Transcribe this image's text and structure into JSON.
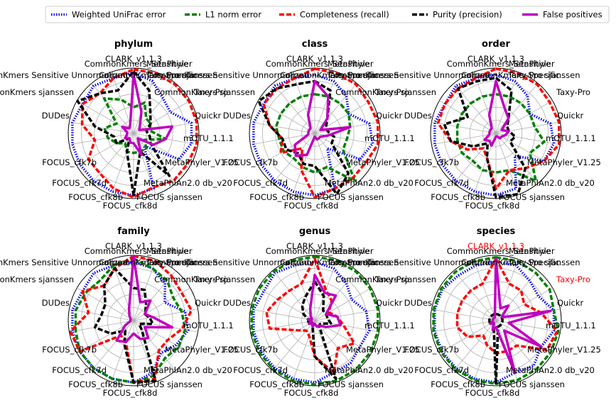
{
  "chart_data": {
    "type": "radar",
    "metric_colors": {
      "Weighted UniFrac error": "#0000ee",
      "L1 norm error": "#008000",
      "Completeness (recall)": "#ff0000",
      "Purity (precision)": "#000000",
      "False positives": "#bf00bf"
    },
    "legend": {
      "position": "top",
      "entries": [
        "Weighted UniFrac error",
        "L1 norm error",
        "Completeness (recall)",
        "Purity (precision)",
        "False positives"
      ]
    },
    "grid": true,
    "rlim": [
      0,
      1
    ],
    "tools": [
      "CLARK_v1.1.3",
      "CommonKmers_Sensitive",
      "CommonKmers_Specific",
      "MetaPhyler",
      "Taxy-Pro sjanssen",
      "Taxy-Pro",
      "Quickr",
      "mOTU_1.1.1",
      "MetaPhyler_V1.25",
      "MetaPhlAn2.0 db_v20",
      "FOCUS sjanssen",
      "FOCUS_cfk8d",
      "FOCUS_cfk8b",
      "FOCUS_cfk7d",
      "FOCUS_cfk7b",
      "DUDes",
      "CommonKmers sjanssen",
      "CommonKmers Sensitive Unnormalized"
    ],
    "tool_label_color": "#000000",
    "highlight_color": "#ff0000",
    "panels": [
      {
        "title": "phylum",
        "highlighted_tools": [],
        "series": [
          {
            "name": "Weighted UniFrac error",
            "values": [
              0.93,
              0.85,
              0.7,
              0.65,
              0.9,
              0.9,
              0.8,
              0.25,
              0.9,
              0.95,
              0.95,
              0.95,
              0.95,
              0.95,
              0.95,
              0.9,
              0.95,
              0.9
            ]
          },
          {
            "name": "L1 norm error",
            "values": [
              0.4,
              0.5,
              0.3,
              0.3,
              0.25,
              0.5,
              0.2,
              0.3,
              0.3,
              0.3,
              0.3,
              0.2,
              0.3,
              0.4,
              0.45,
              0.3,
              0.7,
              0.55
            ]
          },
          {
            "name": "Completeness (recall)",
            "values": [
              0.98,
              0.98,
              0.98,
              0.98,
              0.98,
              0.98,
              0.95,
              0.95,
              0.88,
              0.98,
              0.9,
              0.8,
              0.8,
              0.6,
              0.8,
              0.9,
              0.8,
              0.9
            ]
          },
          {
            "name": "Purity (precision)",
            "values": [
              0.95,
              0.7,
              0.4,
              0.3,
              0.2,
              0.25,
              0.3,
              0.85,
              0.3,
              0.95,
              0.3,
              0.1,
              0.3,
              0.3,
              0.6,
              0.99,
              0.8,
              0.7
            ]
          },
          {
            "name": "False positives",
            "values": [
              0.9,
              0.35,
              0.15,
              0.1,
              0.6,
              0.5,
              0.35,
              0.1,
              0.35,
              0.15,
              0.15,
              0.1,
              0.15,
              0.1,
              0.1,
              0.2,
              0.1,
              0.15
            ]
          }
        ]
      },
      {
        "title": "class",
        "highlighted_tools": [],
        "series": [
          {
            "name": "Weighted UniFrac error",
            "values": [
              0.9,
              0.85,
              0.75,
              0.6,
              0.85,
              0.9,
              0.8,
              0.3,
              0.9,
              0.95,
              0.95,
              0.95,
              0.95,
              0.95,
              0.95,
              0.9,
              0.95,
              0.9
            ]
          },
          {
            "name": "L1 norm error",
            "values": [
              0.6,
              0.6,
              0.6,
              0.6,
              0.55,
              0.5,
              0.5,
              0.95,
              0.55,
              0.6,
              0.55,
              0.5,
              0.55,
              0.55,
              0.6,
              0.6,
              0.6,
              0.6
            ]
          },
          {
            "name": "Completeness (recall)",
            "values": [
              0.99,
              0.98,
              0.98,
              0.95,
              0.98,
              0.98,
              0.9,
              0.9,
              0.9,
              0.98,
              0.6,
              0.3,
              0.6,
              0.5,
              0.7,
              0.9,
              0.9,
              0.9
            ]
          },
          {
            "name": "Purity (precision)",
            "values": [
              0.8,
              0.7,
              0.3,
              0.2,
              0.2,
              0.3,
              0.3,
              0.8,
              0.99,
              0.5,
              0.5,
              0.4,
              0.5,
              0.5,
              0.7,
              0.99,
              0.9,
              0.8
            ]
          },
          {
            "name": "False positives",
            "values": [
              0.8,
              0.6,
              0.3,
              0.1,
              0.55,
              0.2,
              0.1,
              0.1,
              0.1,
              0.05,
              0.35,
              0.45,
              0.35,
              0.1,
              0.1,
              0.1,
              0.1,
              0.3
            ]
          }
        ]
      },
      {
        "title": "order",
        "highlighted_tools": [],
        "series": [
          {
            "name": "Weighted UniFrac error",
            "values": [
              0.9,
              0.85,
              0.75,
              0.6,
              0.85,
              0.9,
              0.85,
              0.45,
              0.9,
              0.95,
              0.95,
              0.95,
              0.95,
              0.95,
              0.95,
              0.9,
              0.95,
              0.9
            ]
          },
          {
            "name": "L1 norm error",
            "values": [
              0.6,
              0.6,
              0.6,
              0.6,
              0.6,
              0.75,
              0.6,
              0.95,
              0.6,
              0.6,
              0.6,
              0.55,
              0.6,
              0.6,
              0.6,
              0.6,
              0.6,
              0.6
            ]
          },
          {
            "name": "Completeness (recall)",
            "values": [
              0.99,
              0.98,
              0.98,
              0.95,
              0.98,
              0.98,
              0.85,
              0.7,
              0.6,
              0.85,
              0.4,
              0.3,
              0.5,
              0.7,
              0.9,
              0.9,
              0.9,
              0.9
            ]
          },
          {
            "name": "Purity (precision)",
            "values": [
              0.85,
              0.7,
              0.3,
              0.2,
              0.2,
              0.3,
              0.25,
              0.7,
              0.99,
              0.98,
              0.4,
              0.2,
              0.4,
              0.7,
              0.8,
              0.5,
              0.9,
              0.85
            ]
          },
          {
            "name": "False positives",
            "values": [
              0.8,
              0.4,
              0.3,
              0.1,
              0.2,
              0.15,
              0.1,
              0.1,
              0.05,
              0.05,
              0.2,
              0.15,
              0.2,
              0.1,
              0.1,
              0.1,
              0.1,
              0.3
            ]
          }
        ]
      },
      {
        "title": "family",
        "highlighted_tools": [],
        "series": [
          {
            "name": "Weighted UniFrac error",
            "values": [
              0.9,
              0.85,
              0.75,
              0.55,
              0.8,
              0.85,
              0.75,
              0.65,
              0.85,
              0.95,
              0.95,
              0.95,
              0.95,
              0.95,
              0.95,
              0.9,
              0.95,
              0.9
            ]
          },
          {
            "name": "L1 norm error",
            "values": [
              0.95,
              0.85,
              0.8,
              0.7,
              0.75,
              0.8,
              0.8,
              0.75,
              0.9,
              0.95,
              0.95,
              0.95,
              0.95,
              0.9,
              0.9,
              0.85,
              0.8,
              0.9
            ]
          },
          {
            "name": "Completeness (recall)",
            "values": [
              0.99,
              0.97,
              0.9,
              0.85,
              0.9,
              0.75,
              0.6,
              0.6,
              0.95,
              0.95,
              0.35,
              0.3,
              0.95,
              0.98,
              0.7,
              0.9,
              0.7,
              0.85
            ]
          },
          {
            "name": "Purity (precision)",
            "values": [
              0.5,
              0.5,
              0.3,
              0.2,
              0.25,
              0.3,
              0.1,
              0.2,
              0.98,
              0.95,
              0.4,
              0.2,
              0.4,
              0.6,
              0.5,
              0.5,
              0.7,
              0.85
            ]
          },
          {
            "name": "False positives",
            "values": [
              0.99,
              0.3,
              0.4,
              0.2,
              0.3,
              0.6,
              0.2,
              0.35,
              0.3,
              0.2,
              0.35,
              0.4,
              0.15,
              0.05,
              0.05,
              0.05,
              0.1,
              0.2
            ]
          }
        ]
      },
      {
        "title": "genus",
        "highlighted_tools": [],
        "series": [
          {
            "name": "Weighted UniFrac error",
            "values": [
              0.9,
              0.85,
              0.75,
              0.65,
              0.8,
              0.85,
              0.8,
              0.85,
              0.85,
              0.95,
              0.95,
              0.95,
              0.95,
              0.95,
              0.95,
              0.9,
              0.95,
              0.9
            ]
          },
          {
            "name": "L1 norm error",
            "values": [
              0.98,
              0.98,
              0.98,
              0.98,
              0.98,
              0.98,
              0.98,
              0.98,
              0.98,
              0.98,
              0.98,
              0.98,
              0.98,
              0.98,
              0.98,
              0.98,
              0.98,
              0.98
            ]
          },
          {
            "name": "Completeness (recall)",
            "values": [
              0.95,
              0.5,
              0.4,
              0.25,
              0.35,
              0.45,
              0.7,
              0.55,
              0.85,
              0.55,
              0.25,
              0.2,
              0.3,
              0.7,
              0.75,
              0.65,
              0.6,
              0.6
            ]
          },
          {
            "name": "Purity (precision)",
            "values": [
              0.6,
              0.4,
              0.2,
              0.2,
              0.2,
              0.25,
              0.1,
              0.1,
              0.95,
              0.55,
              0.1,
              0.05,
              0.1,
              0.1,
              0.1,
              0.2,
              0.3,
              0.4
            ]
          },
          {
            "name": "False positives",
            "values": [
              0.7,
              0.45,
              0.5,
              0.2,
              0.35,
              0.4,
              0.2,
              0.1,
              0.1,
              0.05,
              0.1,
              0.05,
              0.1,
              0.05,
              0.1,
              0.05,
              0.1,
              0.2
            ]
          }
        ]
      },
      {
        "title": "species",
        "highlighted_tools": [
          "CLARK_v1.1.3",
          "Taxy-Pro"
        ],
        "series": [
          {
            "name": "Weighted UniFrac error",
            "values": [
              0.9,
              0.9,
              0.8,
              0.75,
              0.9,
              0.9,
              0.8,
              0.9,
              0.85,
              0.95,
              0.95,
              0.95,
              0.95,
              0.95,
              0.95,
              0.95,
              0.9,
              0.9
            ]
          },
          {
            "name": "L1 norm error",
            "values": [
              0.97,
              0.97,
              0.95,
              0.95,
              0.9,
              0.97,
              0.97,
              0.97,
              0.97,
              0.97,
              0.97,
              0.97,
              0.97,
              0.97,
              0.97,
              0.97,
              0.97,
              0.97
            ]
          },
          {
            "name": "Completeness (recall)",
            "values": [
              0.95,
              0.6,
              0.6,
              0.5,
              0.7,
              0.95,
              0.9,
              0.5,
              0.5,
              0.5,
              0.4,
              0.3,
              0.5,
              0.6,
              0.6,
              0.6,
              0.6,
              0.6
            ]
          },
          {
            "name": "Purity (precision)",
            "values": [
              0.1,
              0.1,
              0.1,
              0.1,
              0.1,
              0.1,
              0.1,
              0.1,
              0.1,
              0.98,
              0.1,
              0.05,
              0.1,
              0.1,
              0.1,
              0.1,
              0.1,
              0.1
            ]
          },
          {
            "name": "False positives",
            "values": [
              0.95,
              0.2,
              0.3,
              0.1,
              0.85,
              0.2,
              0.8,
              0.2,
              0.85,
              0.1,
              0.15,
              0.05,
              0.1,
              0.05,
              0.05,
              0.05,
              0.05,
              0.05
            ]
          }
        ]
      }
    ]
  }
}
